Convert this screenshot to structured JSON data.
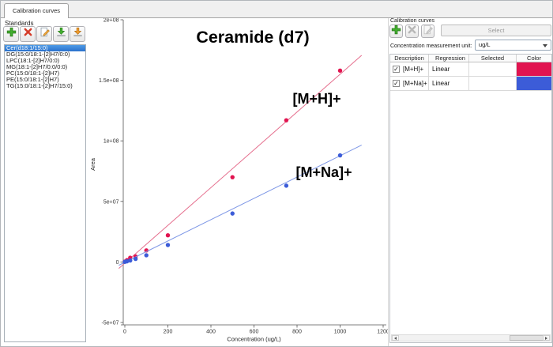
{
  "window": {
    "tab": "Calibration curves"
  },
  "standards_panel": {
    "title": "Standards",
    "toolbar": [
      {
        "name": "add",
        "icon": "plus-icon",
        "enabled": true
      },
      {
        "name": "delete",
        "icon": "x-icon",
        "enabled": true
      },
      {
        "name": "edit",
        "icon": "pencil-page-icon",
        "enabled": true
      },
      {
        "name": "import",
        "icon": "green-down-arrow-icon",
        "enabled": true
      },
      {
        "name": "export",
        "icon": "orange-down-arrow-icon",
        "enabled": true
      }
    ],
    "items": [
      "Cer(d18:1/15:0)",
      "DG(15:0/18:1-[2]H7/0:0)",
      "LPC(18:1-[2]H7/0:0)",
      "MG(18:1-[2]H7/0:0/0:0)",
      "PC(15:0/18:1-[2]H7)",
      "PE(15:0/18:1-[2]H7)",
      "TG(15:0/18:1-[2]H7/15:0)"
    ],
    "selected_index": 0
  },
  "curves_panel": {
    "title": "Calibration curves",
    "toolbar": [
      {
        "name": "add",
        "icon": "plus-icon",
        "enabled": true
      },
      {
        "name": "delete",
        "icon": "x-icon",
        "enabled": false
      },
      {
        "name": "edit",
        "icon": "pencil-page-icon",
        "enabled": false
      }
    ],
    "select_button": "Select",
    "unit_label": "Concentration measurement unit:",
    "unit_value": "ug/L",
    "table": {
      "headers": [
        "Description",
        "Regression",
        "Selected",
        "Color"
      ],
      "rows": [
        {
          "checked": true,
          "description": "[M+H]+",
          "regression": "Linear",
          "selected": "",
          "color": "#e11450"
        },
        {
          "checked": true,
          "description": "[M+Na]+",
          "regression": "Linear",
          "selected": "",
          "color": "#3c5cd8"
        }
      ]
    }
  },
  "chart_data": {
    "type": "scatter",
    "title": "Ceramide (d7)",
    "xlabel": "Concentration (ug/L)",
    "ylabel": "Area",
    "xlim": [
      0,
      1200
    ],
    "ylim": [
      -50000000,
      200000000
    ],
    "x_ticks": [
      0,
      200,
      400,
      600,
      800,
      1000,
      1200
    ],
    "y_ticks": [
      {
        "v": -50000000,
        "label": "-5e+07"
      },
      {
        "v": 0,
        "label": "0"
      },
      {
        "v": 50000000,
        "label": "5e+07"
      },
      {
        "v": 100000000,
        "label": "1e+08"
      },
      {
        "v": 150000000,
        "label": "1.5e+08"
      },
      {
        "v": 200000000,
        "label": "2e+08"
      }
    ],
    "grid": false,
    "legend_position": "annotations-on-plot",
    "x": [
      0,
      10,
      25,
      50,
      100,
      200,
      500,
      750,
      1000
    ],
    "series": [
      {
        "name": "[M+H]+",
        "color": "#e11450",
        "line_color": "#e56e8d",
        "values": [
          300000,
          1500000,
          3500000,
          4500000,
          9500000,
          22000000,
          70000000,
          117000000,
          158000000
        ],
        "fit": {
          "type": "linear",
          "slope": 156000,
          "intercept": -1000000
        },
        "label": {
          "text": "[M+H]+",
          "x": 292,
          "y": 108
        }
      },
      {
        "name": "[M+Na]+",
        "color": "#3c5cd8",
        "line_color": "#7e97e6",
        "values": [
          100000,
          500000,
          1200000,
          2500000,
          5500000,
          14000000,
          40000000,
          63000000,
          88000000
        ],
        "fit": {
          "type": "linear",
          "slope": 88000,
          "intercept": -300000
        },
        "label": {
          "text": "[M+Na]+",
          "x": 301,
          "y": 201
        }
      }
    ],
    "fit_range": [
      -28,
      1100
    ],
    "title_pos": {
      "x": 211,
      "y": 31
    }
  }
}
